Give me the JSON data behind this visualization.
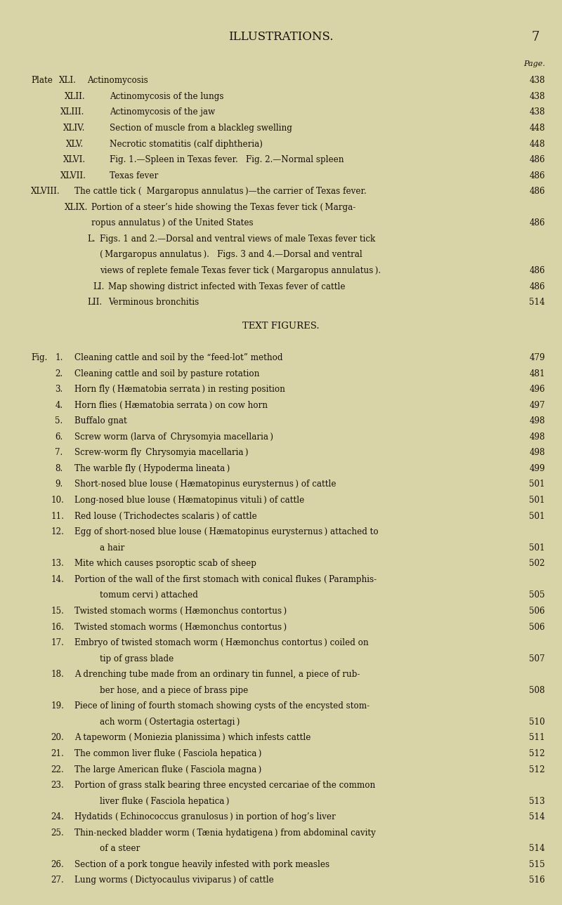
{
  "bg_color": "#d8d4a8",
  "text_color": "#1a1008",
  "page_title": "ILLUSTRATIONS.",
  "page_number": "7",
  "header_label": "Page.",
  "plate_entries": [
    {
      "label": "Plate XLI.",
      "indent": 0,
      "text": "Actinomycosis",
      "dots": true,
      "page": "438"
    },
    {
      "label": "XLII.",
      "indent": 1,
      "text": "Actinomycosis of the lungs",
      "dots": true,
      "page": "438"
    },
    {
      "label": "XLIII.",
      "indent": 1,
      "text": "Actinomycosis of the jaw",
      "dots": true,
      "page": "438"
    },
    {
      "label": "XLIV.",
      "indent": 1,
      "text": "Section of muscle from a blackleg swelling",
      "dots": true,
      "page": "448"
    },
    {
      "label": "XLV.",
      "indent": 1,
      "text": "Necrotic stomatitis (calf diphtheria)",
      "dots": true,
      "page": "448"
    },
    {
      "label": "XLVI.",
      "indent": 1,
      "text": "Fig. 1.—Spleen in Texas fever.   Fig. 2.—Normal spleen",
      "dots": true,
      "page": "486"
    },
    {
      "label": "XLVII.",
      "indent": 1,
      "text": "Texas fever",
      "dots": true,
      "page": "486"
    },
    {
      "label": "XLVIII.",
      "indent": 0,
      "text": "The cattle tick ( Margaropus annulatus )—the carrier of Texas fever.",
      "dots": false,
      "page": "486"
    },
    {
      "label": "XLIX.",
      "indent": 1,
      "text": "Portion of a steer’s hide showing the Texas fever tick ( Marga- ropus annulatus ) of the United States",
      "dots": true,
      "page": "486"
    },
    {
      "label": "L.",
      "indent": 2,
      "text": "Figs. 1 and 2.—Dorsal and ventral views of male Texas fever tick ( Margaropus annulatus ).   Figs. 3 and 4.—Dorsal and ventral views of replete female Texas fever tick ( Margaropus annulatus ).",
      "dots": false,
      "page": "486"
    },
    {
      "label": "LI.",
      "indent": 2,
      "text": "Map showing district infected with Texas fever of cattle",
      "dots": true,
      "page": "486"
    },
    {
      "label": "LII.",
      "indent": 2,
      "text": "Verminous bronchitis",
      "dots": true,
      "page": "514"
    }
  ],
  "fig_section_title": "TEXT FIGURES.",
  "fig_label": "Fig.",
  "fig_entries": [
    {
      "num": "1.",
      "text": "Cleaning cattle and soil by the “feed-lot” method",
      "dots": true,
      "page": "479"
    },
    {
      "num": "2.",
      "text": "Cleaning cattle and soil by pasture rotation",
      "dots": true,
      "page": "481"
    },
    {
      "num": "3.",
      "text": "Horn fly ( Hæmatobia serrata ) in resting position",
      "dots": true,
      "page": "496"
    },
    {
      "num": "4.",
      "text": "Horn flies ( Hæmatobia serrata ) on cow horn",
      "dots": true,
      "page": "497"
    },
    {
      "num": "5.",
      "text": "Buffalo gnat",
      "dots": true,
      "page": "498"
    },
    {
      "num": "6.",
      "text": "Screw worm (larva of  Chrysomyia macellaria )",
      "dots": true,
      "page": "498"
    },
    {
      "num": "7.",
      "text": "Screw-worm fly  Chrysomyia macellaria )",
      "dots": true,
      "page": "498"
    },
    {
      "num": "8.",
      "text": "The warble fly ( Hypoderma lineata )",
      "dots": true,
      "page": "499"
    },
    {
      "num": "9.",
      "text": "Short-nosed blue louse ( Hæmatopinus eurysternus ) of cattle",
      "dots": true,
      "page": "501"
    },
    {
      "num": "10.",
      "text": "Long-nosed blue louse ( Hæmatopinus vituli ) of cattle",
      "dots": true,
      "page": "501"
    },
    {
      "num": "11.",
      "text": "Red louse ( Trichodectes scalaris ) of cattle",
      "dots": true,
      "page": "501"
    },
    {
      "num": "12.",
      "text": "Egg of short-nosed blue louse ( Hæmatopinus eurysternus ) attached to\n        a hair",
      "dots": true,
      "page": "501"
    },
    {
      "num": "13.",
      "text": "Mite which causes psoroptic scab of sheep",
      "dots": true,
      "page": "502"
    },
    {
      "num": "14.",
      "text": "Portion of the wall of the first stomach with conical flukes ( Paramphis- \n        tomum cervi ) attached",
      "dots": true,
      "page": "505"
    },
    {
      "num": "15.",
      "text": "Twisted stomach worms ( Hæmonchus contortus )",
      "dots": true,
      "page": "506"
    },
    {
      "num": "16.",
      "text": "Twisted stomach worms ( Hæmonchus contortus )",
      "dots": true,
      "page": "506"
    },
    {
      "num": "17.",
      "text": "Embryo of twisted stomach worm ( Hæmonchus contortus ) coiled on\n        tip of grass blade",
      "dots": true,
      "page": "507"
    },
    {
      "num": "18.",
      "text": "A drenching tube made from an ordinary tin funnel, a piece of rub-\n        ber hose, and a piece of brass pipe",
      "dots": true,
      "page": "508"
    },
    {
      "num": "19.",
      "text": "Piece of lining of fourth stomach showing cysts of the encysted stom-\n        ach worm ( Ostertagia ostertagi )",
      "dots": true,
      "page": "510"
    },
    {
      "num": "20.",
      "text": "A tapeworm ( Moniezia planissima ) which infests cattle",
      "dots": true,
      "page": "511"
    },
    {
      "num": "21.",
      "text": "The common liver fluke ( Fasciola hepatica )",
      "dots": true,
      "page": "512"
    },
    {
      "num": "22.",
      "text": "The large American fluke ( Fasciola magna )",
      "dots": true,
      "page": "512"
    },
    {
      "num": "23.",
      "text": "Portion of grass stalk bearing three encysted cercariae of the common\n        liver fluke ( Fasciola hepatica )",
      "dots": true,
      "page": "513"
    },
    {
      "num": "24.",
      "text": "Hydatids ( Echinococcus granulosus ) in portion of hog’s liver",
      "dots": true,
      "page": "514"
    },
    {
      "num": "25.",
      "text": "Thin-necked bladder worm ( Tænia hydatigena ) from abdominal cavity\n        of a steer",
      "dots": true,
      "page": "514"
    },
    {
      "num": "26.",
      "text": "Section of a pork tongue heavily infested with pork measles",
      "dots": true,
      "page": "515"
    },
    {
      "num": "27.",
      "text": "Lung worms ( Dictyocaulus viviparus ) of cattle",
      "dots": true,
      "page": "516"
    }
  ]
}
